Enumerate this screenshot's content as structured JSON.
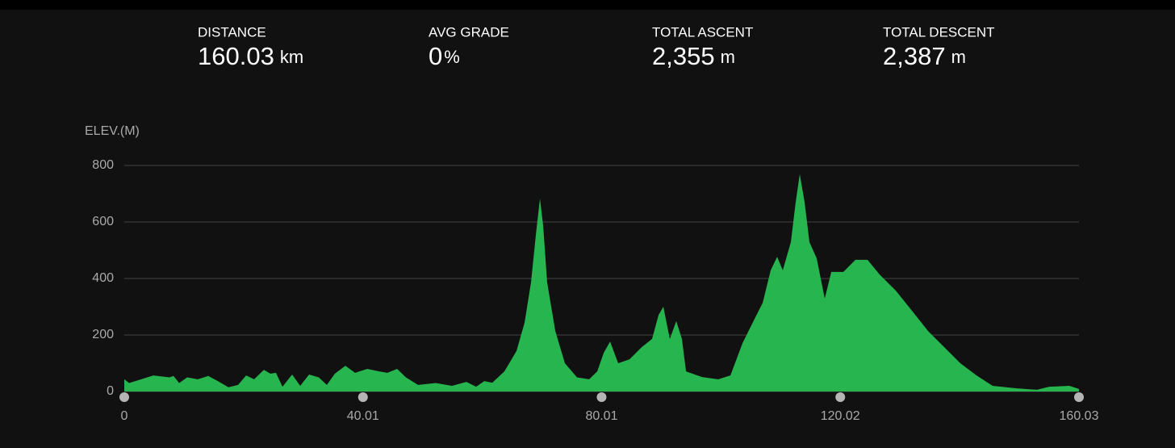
{
  "stats": [
    {
      "label": "DISTANCE",
      "value": "160.03",
      "unit": "km"
    },
    {
      "label": "AVG GRADE",
      "value": "0",
      "unit": "%"
    },
    {
      "label": "TOTAL ASCENT",
      "value": "2,355",
      "unit": "m"
    },
    {
      "label": "TOTAL DESCENT",
      "value": "2,387",
      "unit": "m"
    }
  ],
  "chart_data": {
    "type": "area",
    "y_label": "ELEV.(M)",
    "color": "#27b550",
    "grid": true,
    "xlim": [
      0,
      160.03
    ],
    "xticks": [
      0,
      40.01,
      80.01,
      120.02,
      160.03
    ],
    "ylim": [
      0,
      800
    ],
    "yticks": [
      0,
      200,
      400,
      600,
      800
    ],
    "x": [
      0,
      0.81,
      2.84,
      4.87,
      7.58,
      8.25,
      9.2,
      10.55,
      12.31,
      14.07,
      15.69,
      17.45,
      19.07,
      20.42,
      21.77,
      23.4,
      24.48,
      25.43,
      26.51,
      28.14,
      29.49,
      30.98,
      32.6,
      33.96,
      35.31,
      37.07,
      38.69,
      40.72,
      42.75,
      44.1,
      45.73,
      47.21,
      49.24,
      52.22,
      54.92,
      57.36,
      58.98,
      60.34,
      61.69,
      63.72,
      65.75,
      67.1,
      68.18,
      69.0,
      69.68,
      70.22,
      70.89,
      72.25,
      73.86,
      75.89,
      77.92,
      79.28,
      80.36,
      81.44,
      82.79,
      84.69,
      86.72,
      88.47,
      89.56,
      90.37,
      91.45,
      92.53,
      93.48,
      94.16,
      96.86,
      99.57,
      101.6,
      103.63,
      105.65,
      107.01,
      108.36,
      109.44,
      110.39,
      111.74,
      112.55,
      113.23,
      114.04,
      114.85,
      116.07,
      117.42,
      118.51,
      120.54,
      122.56,
      124.59,
      126.62,
      129.33,
      132.03,
      134.74,
      137.45,
      140.15,
      142.86,
      145.56,
      149.62,
      153.0,
      155.03,
      158.42,
      160.03
    ],
    "values": [
      43,
      30,
      43,
      57,
      50,
      55,
      30,
      50,
      43,
      55,
      37,
      15,
      23,
      57,
      43,
      77,
      63,
      66,
      17,
      60,
      20,
      60,
      50,
      23,
      63,
      91,
      66,
      80,
      71,
      66,
      80,
      50,
      23,
      30,
      20,
      34,
      17,
      37,
      31,
      71,
      143,
      243,
      386,
      557,
      683,
      586,
      386,
      214,
      100,
      50,
      43,
      71,
      137,
      177,
      100,
      114,
      157,
      186,
      271,
      300,
      186,
      249,
      186,
      71,
      51,
      43,
      57,
      171,
      257,
      314,
      429,
      477,
      429,
      529,
      671,
      769,
      671,
      529,
      471,
      329,
      423,
      423,
      466,
      466,
      414,
      357,
      286,
      214,
      157,
      100,
      57,
      20,
      11,
      6,
      17,
      20,
      9
    ]
  }
}
